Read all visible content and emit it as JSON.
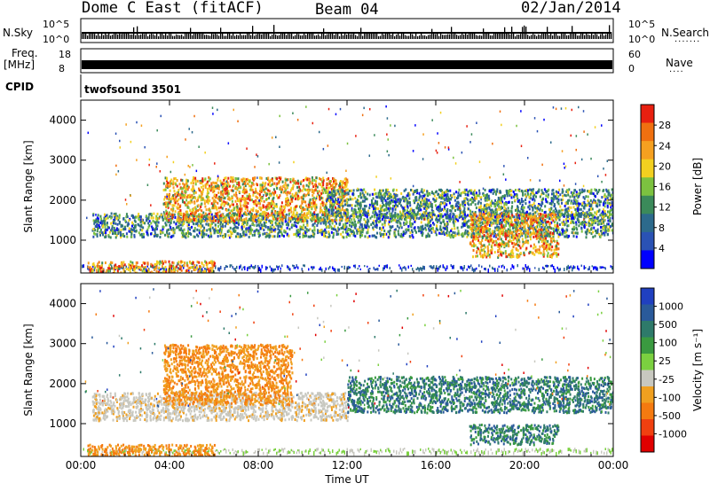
{
  "header": {
    "title": "Dome C East (fitACF)",
    "beam": "Beam 04",
    "date": "02/Jan/2014"
  },
  "strip_labels": {
    "nsky": "N.Sky",
    "nsearch": "N.Search",
    "freq": "Freq.",
    "mhz": "[MHz]",
    "nave": "Nave",
    "cpid": "CPID",
    "cpid_value": "twofsound 3501",
    "dots": "·······",
    "dots_short": "····"
  },
  "strip_ticks": {
    "sky_top": "10^5",
    "sky_bottom": "10^0",
    "search_top": "10^5",
    "search_bottom": "10^0",
    "freq_top": "18",
    "freq_bottom": "8",
    "nave_top": "60",
    "nave_bottom": "0"
  },
  "colors": {
    "power_scale": [
      "#0000ff",
      "#2a52b4",
      "#2c6a8c",
      "#3b8a5a",
      "#7cc240",
      "#f2d020",
      "#f5a020",
      "#f07010",
      "#e82010"
    ],
    "velocity_scale": [
      "#2040c0",
      "#2a5a9a",
      "#2e7a6a",
      "#3a9a40",
      "#7bd040",
      "#c8c8c0",
      "#f0a020",
      "#f57a10",
      "#f04010",
      "#e00000"
    ]
  },
  "chart_data": [
    {
      "type": "heatmap",
      "title": "",
      "xlabel": "",
      "ylabel": "Slant Range [km]",
      "xlim": [
        "00:00",
        "00:00"
      ],
      "ylim": [
        180,
        4500
      ],
      "x_ticks": [
        "00:00",
        "04:00",
        "08:00",
        "12:00",
        "16:00",
        "20:00",
        "00:00"
      ],
      "y_ticks": [
        1000,
        2000,
        3000,
        4000
      ],
      "colorbar": {
        "label": "Power [dB]",
        "ticks": [
          "28",
          "24",
          "20",
          "16",
          "12",
          "8",
          "4"
        ],
        "range": [
          0,
          30
        ]
      },
      "regions": [
        {
          "t": [
            0.3,
            6.0
          ],
          "range": [
            200,
            500
          ],
          "level": "high"
        },
        {
          "t": [
            0.5,
            24.0
          ],
          "range": [
            1100,
            1700
          ],
          "level": "medium"
        },
        {
          "t": [
            3.7,
            12.0
          ],
          "range": [
            1500,
            2600
          ],
          "level": "high"
        },
        {
          "t": [
            11.0,
            24.0
          ],
          "range": [
            1600,
            2300
          ],
          "level": "medium"
        },
        {
          "t": [
            17.5,
            21.5
          ],
          "range": [
            600,
            1700
          ],
          "level": "high"
        }
      ]
    },
    {
      "type": "heatmap",
      "title": "",
      "xlabel": "Time UT",
      "ylabel": "Slant Range [km]",
      "xlim": [
        "00:00",
        "00:00"
      ],
      "ylim": [
        180,
        4500
      ],
      "x_ticks": [
        "00:00",
        "04:00",
        "08:00",
        "12:00",
        "16:00",
        "20:00",
        "00:00"
      ],
      "y_ticks": [
        1000,
        2000,
        3000,
        4000
      ],
      "colorbar": {
        "label": "Velocity [m s⁻¹]",
        "ticks": [
          "1000",
          "500",
          "100",
          "25",
          "-25",
          "-100",
          "-500",
          "-1000"
        ],
        "range": [
          -1000,
          1000
        ]
      },
      "regions": [
        {
          "t": [
            0.3,
            6.0
          ],
          "range": [
            200,
            500
          ],
          "level": "negative"
        },
        {
          "t": [
            0.5,
            12.0
          ],
          "range": [
            1100,
            1800
          ],
          "level": "near-zero"
        },
        {
          "t": [
            3.7,
            9.5
          ],
          "range": [
            1500,
            3000
          ],
          "level": "negative"
        },
        {
          "t": [
            12.0,
            24.0
          ],
          "range": [
            1300,
            2200
          ],
          "level": "positive"
        },
        {
          "t": [
            17.5,
            21.5
          ],
          "range": [
            500,
            1000
          ],
          "level": "positive"
        }
      ]
    }
  ]
}
